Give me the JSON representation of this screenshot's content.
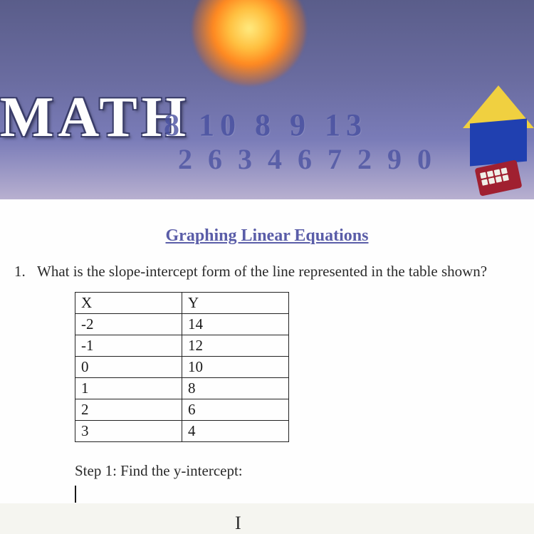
{
  "header": {
    "title": "MATH",
    "bg_numbers_row1": "8 10 8 9 13",
    "bg_numbers_row2": "2 6 3 4 6 7 2 9 0",
    "colors": {
      "gradient_top": "#5a5d8a",
      "gradient_bottom": "#b8b0d0",
      "title_text": "#fefefe",
      "title_outline": "#3a3d6a",
      "orb_inner": "#ffeb80",
      "orb_outer": "#ff8820"
    }
  },
  "content": {
    "section_heading": "Graphing Linear Equations",
    "section_heading_color": "#5a5da8",
    "question_number": "1.",
    "question_text": "What is the slope-intercept form of the line represented in the table shown?",
    "table": {
      "columns": [
        "X",
        "Y"
      ],
      "rows": [
        [
          "-2",
          "14"
        ],
        [
          "-1",
          "12"
        ],
        [
          "0",
          "10"
        ],
        [
          "1",
          "8"
        ],
        [
          "2",
          "6"
        ],
        [
          "3",
          "4"
        ]
      ],
      "border_color": "#222222",
      "cell_fontsize": 21
    },
    "step_label": "Step 1: Find the y-intercept:",
    "body_bg": "#fefefe",
    "text_color": "#2a2a2a"
  }
}
